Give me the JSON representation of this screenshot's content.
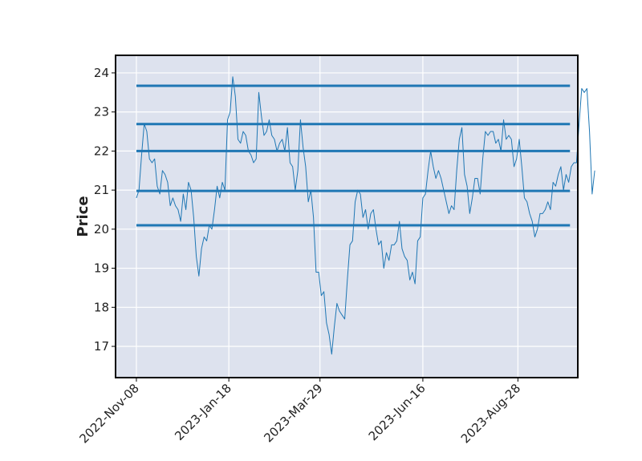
{
  "chart_data": {
    "type": "line",
    "title": "",
    "xlabel": "",
    "ylabel": "Price",
    "ylim": [
      16.2,
      24.45
    ],
    "xlim": [
      "2022-10-23",
      "2023-10-13"
    ],
    "grid": true,
    "x_ticks": [
      "2022-Nov-08",
      "2023-Jan-18",
      "2023-Mar-29",
      "2023-Jun-16",
      "2023-Aug-28"
    ],
    "y_ticks": [
      17,
      18,
      19,
      20,
      21,
      22,
      23,
      24
    ],
    "colors": {
      "line": "#1f77b4",
      "plot_background": "#dde2ee",
      "grid": "#ffffff"
    },
    "hlines": [
      23.67,
      22.69,
      22.0,
      20.98,
      20.1
    ],
    "hline_range": [
      "2022-11-08",
      "2023-10-07"
    ],
    "series": [
      {
        "values": [
          [
            "2022-11-08",
            20.8
          ],
          [
            "2022-11-10",
            21.0
          ],
          [
            "2022-11-12",
            21.9
          ],
          [
            "2022-11-14",
            22.7
          ],
          [
            "2022-11-16",
            22.5
          ],
          [
            "2022-11-18",
            21.8
          ],
          [
            "2022-11-20",
            21.7
          ],
          [
            "2022-11-22",
            21.8
          ],
          [
            "2022-11-24",
            21.1
          ],
          [
            "2022-11-26",
            20.9
          ],
          [
            "2022-11-28",
            21.5
          ],
          [
            "2022-11-30",
            21.4
          ],
          [
            "2022-12-02",
            21.2
          ],
          [
            "2022-12-04",
            20.6
          ],
          [
            "2022-12-06",
            20.8
          ],
          [
            "2022-12-08",
            20.6
          ],
          [
            "2022-12-10",
            20.5
          ],
          [
            "2022-12-12",
            20.2
          ],
          [
            "2022-12-14",
            20.9
          ],
          [
            "2022-12-16",
            20.5
          ],
          [
            "2022-12-18",
            21.2
          ],
          [
            "2022-12-20",
            21.0
          ],
          [
            "2022-12-22",
            20.3
          ],
          [
            "2022-12-24",
            19.3
          ],
          [
            "2022-12-26",
            18.8
          ],
          [
            "2022-12-28",
            19.5
          ],
          [
            "2022-12-30",
            19.8
          ],
          [
            "2023-01-01",
            19.7
          ],
          [
            "2023-01-03",
            20.1
          ],
          [
            "2023-01-05",
            20.0
          ],
          [
            "2023-01-07",
            20.5
          ],
          [
            "2023-01-09",
            21.1
          ],
          [
            "2023-01-11",
            20.8
          ],
          [
            "2023-01-13",
            21.2
          ],
          [
            "2023-01-15",
            21.0
          ],
          [
            "2023-01-17",
            22.8
          ],
          [
            "2023-01-19",
            23.0
          ],
          [
            "2023-01-21",
            23.9
          ],
          [
            "2023-01-23",
            23.4
          ],
          [
            "2023-01-25",
            22.3
          ],
          [
            "2023-01-27",
            22.2
          ],
          [
            "2023-01-29",
            22.5
          ],
          [
            "2023-01-31",
            22.4
          ],
          [
            "2023-02-02",
            22.0
          ],
          [
            "2023-02-04",
            21.9
          ],
          [
            "2023-02-06",
            21.7
          ],
          [
            "2023-02-08",
            21.8
          ],
          [
            "2023-02-10",
            23.5
          ],
          [
            "2023-02-12",
            22.9
          ],
          [
            "2023-02-14",
            22.4
          ],
          [
            "2023-02-16",
            22.5
          ],
          [
            "2023-02-18",
            22.8
          ],
          [
            "2023-02-20",
            22.4
          ],
          [
            "2023-02-22",
            22.3
          ],
          [
            "2023-02-24",
            22.0
          ],
          [
            "2023-02-26",
            22.2
          ],
          [
            "2023-02-28",
            22.3
          ],
          [
            "2023-03-02",
            22.0
          ],
          [
            "2023-03-04",
            22.6
          ],
          [
            "2023-03-06",
            21.7
          ],
          [
            "2023-03-08",
            21.6
          ],
          [
            "2023-03-10",
            21.0
          ],
          [
            "2023-03-12",
            21.5
          ],
          [
            "2023-03-14",
            22.8
          ],
          [
            "2023-03-16",
            22.1
          ],
          [
            "2023-03-18",
            21.6
          ],
          [
            "2023-03-20",
            20.7
          ],
          [
            "2023-03-22",
            21.0
          ],
          [
            "2023-03-24",
            20.3
          ],
          [
            "2023-03-26",
            18.9
          ],
          [
            "2023-03-28",
            18.9
          ],
          [
            "2023-03-30",
            18.3
          ],
          [
            "2023-04-01",
            18.4
          ],
          [
            "2023-04-03",
            17.6
          ],
          [
            "2023-04-05",
            17.3
          ],
          [
            "2023-04-07",
            16.8
          ],
          [
            "2023-04-09",
            17.5
          ],
          [
            "2023-04-11",
            18.1
          ],
          [
            "2023-04-13",
            17.9
          ],
          [
            "2023-04-15",
            17.8
          ],
          [
            "2023-04-17",
            17.7
          ],
          [
            "2023-04-19",
            18.7
          ],
          [
            "2023-04-21",
            19.6
          ],
          [
            "2023-04-23",
            19.7
          ],
          [
            "2023-04-25",
            20.7
          ],
          [
            "2023-04-27",
            21.0
          ],
          [
            "2023-04-29",
            20.9
          ],
          [
            "2023-05-01",
            20.3
          ],
          [
            "2023-05-03",
            20.5
          ],
          [
            "2023-05-05",
            20.0
          ],
          [
            "2023-05-07",
            20.4
          ],
          [
            "2023-05-09",
            20.5
          ],
          [
            "2023-05-11",
            20.0
          ],
          [
            "2023-05-13",
            19.6
          ],
          [
            "2023-05-15",
            19.7
          ],
          [
            "2023-05-17",
            19.0
          ],
          [
            "2023-05-19",
            19.4
          ],
          [
            "2023-05-21",
            19.2
          ],
          [
            "2023-05-23",
            19.6
          ],
          [
            "2023-05-25",
            19.6
          ],
          [
            "2023-05-27",
            19.7
          ],
          [
            "2023-05-29",
            20.2
          ],
          [
            "2023-05-31",
            19.5
          ],
          [
            "2023-06-02",
            19.3
          ],
          [
            "2023-06-04",
            19.2
          ],
          [
            "2023-06-06",
            18.7
          ],
          [
            "2023-06-08",
            18.9
          ],
          [
            "2023-06-10",
            18.6
          ],
          [
            "2023-06-12",
            19.7
          ],
          [
            "2023-06-14",
            19.8
          ],
          [
            "2023-06-16",
            20.8
          ],
          [
            "2023-06-18",
            20.9
          ],
          [
            "2023-06-20",
            21.5
          ],
          [
            "2023-06-22",
            22.0
          ],
          [
            "2023-06-24",
            21.6
          ],
          [
            "2023-06-26",
            21.3
          ],
          [
            "2023-06-28",
            21.5
          ],
          [
            "2023-06-30",
            21.3
          ],
          [
            "2023-07-02",
            21.0
          ],
          [
            "2023-07-04",
            20.7
          ],
          [
            "2023-07-06",
            20.4
          ],
          [
            "2023-07-08",
            20.6
          ],
          [
            "2023-07-10",
            20.5
          ],
          [
            "2023-07-12",
            21.5
          ],
          [
            "2023-07-14",
            22.3
          ],
          [
            "2023-07-16",
            22.6
          ],
          [
            "2023-07-18",
            21.4
          ],
          [
            "2023-07-20",
            21.1
          ],
          [
            "2023-07-22",
            20.4
          ],
          [
            "2023-07-24",
            20.8
          ],
          [
            "2023-07-26",
            21.3
          ],
          [
            "2023-07-28",
            21.3
          ],
          [
            "2023-07-30",
            20.9
          ],
          [
            "2023-08-01",
            21.8
          ],
          [
            "2023-08-03",
            22.5
          ],
          [
            "2023-08-05",
            22.4
          ],
          [
            "2023-08-07",
            22.5
          ],
          [
            "2023-08-09",
            22.5
          ],
          [
            "2023-08-11",
            22.2
          ],
          [
            "2023-08-13",
            22.3
          ],
          [
            "2023-08-15",
            22.0
          ],
          [
            "2023-08-17",
            22.8
          ],
          [
            "2023-08-19",
            22.3
          ],
          [
            "2023-08-21",
            22.4
          ],
          [
            "2023-08-23",
            22.3
          ],
          [
            "2023-08-25",
            21.6
          ],
          [
            "2023-08-27",
            21.8
          ],
          [
            "2023-08-29",
            22.3
          ],
          [
            "2023-08-31",
            21.6
          ],
          [
            "2023-09-02",
            20.8
          ],
          [
            "2023-09-04",
            20.7
          ],
          [
            "2023-09-06",
            20.4
          ],
          [
            "2023-09-08",
            20.2
          ],
          [
            "2023-09-10",
            19.8
          ],
          [
            "2023-09-12",
            20.0
          ],
          [
            "2023-09-14",
            20.4
          ],
          [
            "2023-09-16",
            20.4
          ],
          [
            "2023-09-18",
            20.5
          ],
          [
            "2023-09-20",
            20.7
          ],
          [
            "2023-09-22",
            20.5
          ],
          [
            "2023-09-24",
            21.2
          ],
          [
            "2023-09-26",
            21.1
          ],
          [
            "2023-09-28",
            21.4
          ],
          [
            "2023-09-30",
            21.6
          ],
          [
            "2023-10-02",
            21.0
          ],
          [
            "2023-10-04",
            21.4
          ],
          [
            "2023-10-06",
            21.2
          ],
          [
            "2023-10-08",
            21.6
          ],
          [
            "2023-10-10",
            21.7
          ],
          [
            "2023-10-12",
            21.7
          ],
          [
            "2023-10-14",
            22.7
          ],
          [
            "2023-10-16",
            23.6
          ],
          [
            "2023-10-18",
            23.5
          ],
          [
            "2023-10-20",
            23.6
          ],
          [
            "2023-10-22",
            22.5
          ],
          [
            "2023-10-24",
            20.9
          ],
          [
            "2023-10-26",
            21.5
          ]
        ]
      }
    ]
  }
}
